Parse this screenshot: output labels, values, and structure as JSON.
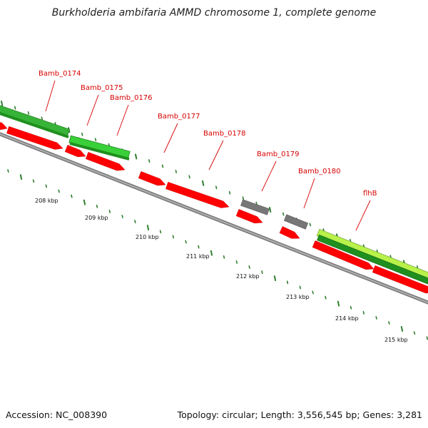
{
  "title": "Burkholderia ambifaria AMMD chromosome 1, complete genome",
  "footer": {
    "accession": "Accession: NC_008390",
    "summary": "Topology: circular; Length: 3,556,545 bp; Genes: 3,281"
  },
  "colors": {
    "gene_label": "#d80000",
    "leader_line": "#d80000",
    "red_feature": "#ff0000",
    "green_dark": "#1f8f1f",
    "green_mid": "#37b337",
    "green_bright": "#b8f14a",
    "gray_feature": "#777777",
    "backbone": "#8e8e8e",
    "tick": "#2f7f2f"
  },
  "gene_labels": [
    "Bamb_0174",
    "Bamb_0175",
    "Bamb_0176",
    "Bamb_0177",
    "Bamb_0178",
    "Bamb_0179",
    "Bamb_0180",
    "flhB"
  ],
  "tick_labels": [
    "208 kbp",
    "209 kbp",
    "210 kbp",
    "211 kbp",
    "212 kbp",
    "213 kbp",
    "214 kbp",
    "215 kbp"
  ]
}
